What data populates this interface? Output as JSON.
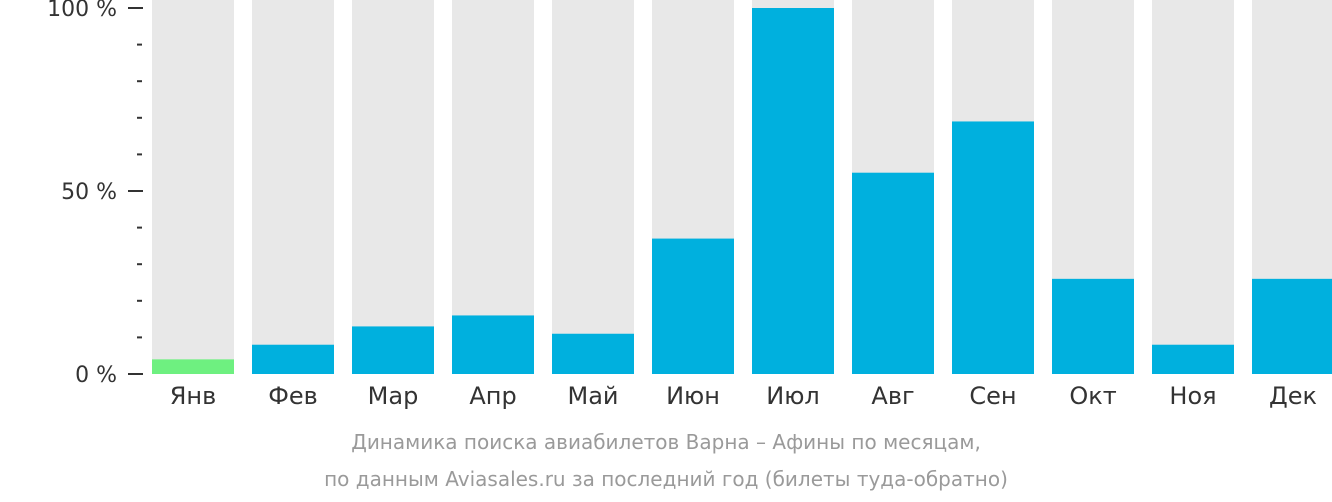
{
  "chart_data": {
    "type": "bar",
    "categories": [
      "Янв",
      "Фев",
      "Мар",
      "Апр",
      "Май",
      "Июн",
      "Июл",
      "Авг",
      "Сен",
      "Окт",
      "Ноя",
      "Дек"
    ],
    "values": [
      4,
      8,
      13,
      16,
      11,
      37,
      100,
      55,
      69,
      26,
      8,
      26
    ],
    "highlight_index": 0,
    "ylim": [
      0,
      100
    ],
    "y_ticks": [
      {
        "value": 0,
        "label": "0 %"
      },
      {
        "value": 50,
        "label": "50 %"
      },
      {
        "value": 100,
        "label": "100 %"
      }
    ],
    "y_minor_step": 10,
    "grid": false,
    "colors": {
      "bar": "#00b0de",
      "highlight": "#6ef080",
      "track": "#e8e8e8",
      "axis": "#333333",
      "label": "#333333",
      "caption": "#9a9a9a"
    }
  },
  "caption": {
    "line1": "Динамика поиска авиабилетов Варна – Афины по месяцам,",
    "line2": "по данным Aviasales.ru за последний год (билеты туда-обратно)"
  }
}
